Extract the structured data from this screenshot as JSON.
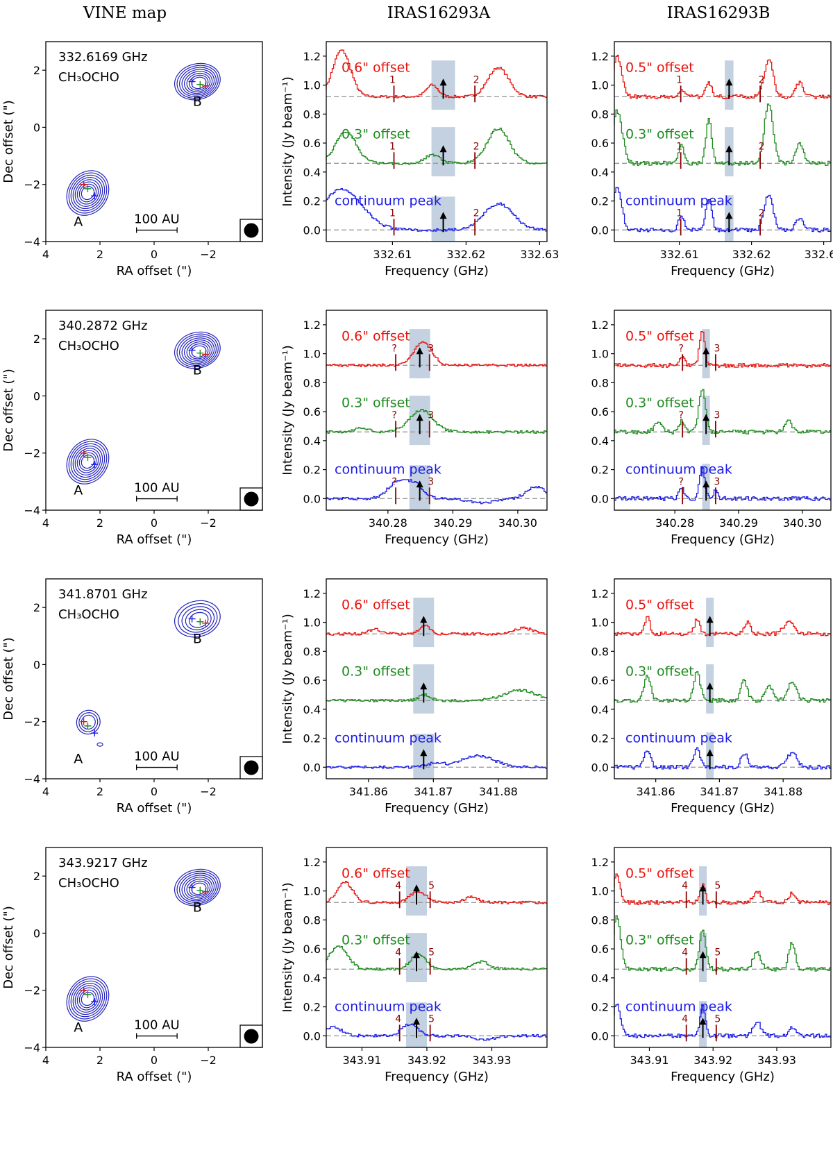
{
  "column_titles": [
    "VINE map",
    "IRAS16293A",
    "IRAS16293B"
  ],
  "map_axes": {
    "xlabel": "RA offset (\")",
    "ylabel": "Dec offset (\")",
    "x_ticks": [
      "4",
      "2",
      "0",
      "−2"
    ],
    "x_tick_values": [
      4,
      2,
      0,
      -2
    ],
    "y_ticks": [
      "−4",
      "−2",
      "0",
      "2"
    ],
    "y_tick_values": [
      -4,
      -2,
      0,
      2
    ],
    "xlim": [
      4,
      -4
    ],
    "ylim": [
      -4,
      3
    ],
    "scale_bar": "100 AU",
    "source_labels": [
      "A",
      "B"
    ]
  },
  "spectrum_axes": {
    "xlabel": "Frequency (GHz)",
    "ylabel": "Intensity (Jy beam⁻¹)",
    "y_ticks": [
      "0.0",
      "0.2",
      "0.4",
      "0.6",
      "0.8",
      "1.0",
      "1.2"
    ],
    "y_tick_values": [
      0.0,
      0.2,
      0.4,
      0.6,
      0.8,
      1.0,
      1.2
    ],
    "ylim": [
      -0.08,
      1.3
    ],
    "trace_labels_A": [
      "0.6\" offset",
      "0.3\" offset",
      "continuum peak"
    ],
    "trace_labels_B": [
      "0.5\" offset",
      "0.3\" offset",
      "continuum peak"
    ],
    "baselines": [
      0.92,
      0.46,
      0.0
    ],
    "colors": [
      "#e8120d",
      "#1e8a1e",
      "#1a1ae6"
    ]
  },
  "colors": {
    "contour": "#2222bb",
    "marker_line": "#8b0000",
    "highlight": "#b8c9dc",
    "baseline": "#999999"
  },
  "chart_data": [
    {
      "type": "line",
      "row": 1,
      "frequency_label": "332.6169 GHz",
      "molecule": "CH₃OCHO",
      "xlim": [
        332.601,
        332.631
      ],
      "x_ticks": [
        "332.61",
        "332.62",
        "332.63"
      ],
      "x_tick_values": [
        332.61,
        332.62,
        332.63
      ],
      "center": 332.6169,
      "markers": [
        {
          "label": "1",
          "freq": 332.6102
        },
        {
          "label": "2",
          "freq": 332.6212
        }
      ],
      "series": [
        {
          "name": "IRAS16293A 0.6\" offset",
          "features": [
            [
              332.6032,
              0.32,
              0.0012
            ],
            [
              332.6155,
              0.08,
              0.0008
            ],
            [
              332.6245,
              0.2,
              0.0014
            ]
          ]
        },
        {
          "name": "IRAS16293A 0.3\" offset",
          "features": [
            [
              332.6038,
              0.22,
              0.0014
            ],
            [
              332.6155,
              0.06,
              0.001
            ],
            [
              332.6245,
              0.24,
              0.0015
            ]
          ]
        },
        {
          "name": "IRAS16293A continuum peak",
          "features": [
            [
              332.6032,
              0.28,
              0.0028
            ],
            [
              332.6245,
              0.18,
              0.002
            ]
          ]
        },
        {
          "name": "IRAS16293B 0.5\" offset",
          "features": [
            [
              332.6015,
              0.28,
              0.0006
            ],
            [
              332.6104,
              0.05,
              0.0004
            ],
            [
              332.6142,
              0.1,
              0.0004
            ],
            [
              332.6225,
              0.26,
              0.0006
            ],
            [
              332.6268,
              0.1,
              0.0005
            ]
          ]
        },
        {
          "name": "IRAS16293B 0.3\" offset",
          "features": [
            [
              332.6015,
              0.36,
              0.0007
            ],
            [
              332.6104,
              0.12,
              0.0004
            ],
            [
              332.6142,
              0.3,
              0.0004
            ],
            [
              332.6225,
              0.42,
              0.0006
            ],
            [
              332.6268,
              0.14,
              0.0005
            ]
          ]
        },
        {
          "name": "IRAS16293B continuum peak",
          "features": [
            [
              332.6015,
              0.3,
              0.0006
            ],
            [
              332.6104,
              0.1,
              0.0004
            ],
            [
              332.6142,
              0.22,
              0.0004
            ],
            [
              332.6225,
              0.24,
              0.0006
            ],
            [
              332.6268,
              0.08,
              0.0005
            ]
          ]
        }
      ]
    },
    {
      "type": "line",
      "row": 2,
      "frequency_label": "340.2872 GHz",
      "molecule": "CH₃OCHO",
      "xlim": [
        340.2705,
        340.3045
      ],
      "x_ticks": [
        "340.28",
        "340.29",
        "340.30"
      ],
      "x_tick_values": [
        340.28,
        340.29,
        340.3
      ],
      "center": 340.2849,
      "markers": [
        {
          "label": "?",
          "freq": 340.2812
        },
        {
          "label": "3",
          "freq": 340.2864
        }
      ],
      "series": [
        {
          "name": "IRAS16293A 0.6\" offset",
          "features": [
            [
              340.2855,
              0.16,
              0.0014
            ]
          ]
        },
        {
          "name": "IRAS16293A 0.3\" offset",
          "features": [
            [
              340.2852,
              0.15,
              0.0018
            ],
            [
              340.276,
              0.03,
              0.001
            ]
          ]
        },
        {
          "name": "IRAS16293A continuum peak",
          "features": [
            [
              340.2818,
              0.12,
              0.0016
            ],
            [
              340.2845,
              0.08,
              0.0012
            ],
            [
              340.2945,
              -0.03,
              0.002
            ],
            [
              340.303,
              0.08,
              0.0015
            ]
          ]
        },
        {
          "name": "IRAS16293B 0.5\" offset",
          "features": [
            [
              340.2812,
              0.06,
              0.0004
            ],
            [
              340.2844,
              0.24,
              0.0004
            ]
          ]
        },
        {
          "name": "IRAS16293B 0.3\" offset",
          "features": [
            [
              340.2812,
              0.08,
              0.0004
            ],
            [
              340.2844,
              0.3,
              0.0005
            ],
            [
              340.2775,
              0.06,
              0.0006
            ],
            [
              340.298,
              0.08,
              0.0005
            ]
          ]
        },
        {
          "name": "IRAS16293B continuum peak",
          "features": [
            [
              340.2812,
              0.08,
              0.0004
            ],
            [
              340.2844,
              0.22,
              0.0004
            ],
            [
              340.2865,
              0.06,
              0.0003
            ]
          ]
        }
      ]
    },
    {
      "type": "line",
      "row": 3,
      "frequency_label": "341.8701 GHz",
      "molecule": "CH₃OCHO",
      "xlim": [
        341.8535,
        341.8875
      ],
      "x_ticks": [
        "341.86",
        "341.87",
        "341.88"
      ],
      "x_tick_values": [
        341.86,
        341.87,
        341.88
      ],
      "center": 341.8685,
      "markers": [],
      "series": [
        {
          "name": "IRAS16293A 0.6\" offset",
          "features": [
            [
              341.8688,
              0.06,
              0.0008
            ],
            [
              341.8612,
              0.03,
              0.001
            ],
            [
              341.884,
              0.04,
              0.0015
            ]
          ]
        },
        {
          "name": "IRAS16293A 0.3\" offset",
          "features": [
            [
              341.8688,
              0.04,
              0.0009
            ],
            [
              341.8835,
              0.07,
              0.0025
            ]
          ]
        },
        {
          "name": "IRAS16293A continuum peak",
          "features": [
            [
              341.877,
              0.08,
              0.0025
            ],
            [
              341.8705,
              0.03,
              0.0012
            ]
          ]
        },
        {
          "name": "IRAS16293B 0.5\" offset",
          "features": [
            [
              341.8588,
              0.12,
              0.0004
            ],
            [
              341.8666,
              0.1,
              0.0004
            ],
            [
              341.8745,
              0.08,
              0.0005
            ],
            [
              341.881,
              0.08,
              0.0008
            ]
          ]
        },
        {
          "name": "IRAS16293B 0.3\" offset",
          "features": [
            [
              341.8588,
              0.18,
              0.0005
            ],
            [
              341.8666,
              0.2,
              0.0005
            ],
            [
              341.874,
              0.14,
              0.0005
            ],
            [
              341.878,
              0.1,
              0.0006
            ],
            [
              341.8815,
              0.12,
              0.0007
            ]
          ]
        },
        {
          "name": "IRAS16293B continuum peak",
          "features": [
            [
              341.8588,
              0.12,
              0.0005
            ],
            [
              341.8666,
              0.13,
              0.0005
            ],
            [
              341.874,
              0.1,
              0.0005
            ],
            [
              341.8815,
              0.1,
              0.0008
            ]
          ]
        }
      ]
    },
    {
      "type": "line",
      "row": 4,
      "frequency_label": "343.9217 GHz",
      "molecule": "CH₃OCHO",
      "xlim": [
        343.9045,
        343.9385
      ],
      "x_ticks": [
        "343.91",
        "343.92",
        "343.93"
      ],
      "x_tick_values": [
        343.91,
        343.92,
        343.93
      ],
      "center": 343.9184,
      "markers": [
        {
          "label": "4",
          "freq": 343.9158
        },
        {
          "label": "5",
          "freq": 343.9205
        }
      ],
      "series": [
        {
          "name": "IRAS16293A 0.6\" offset",
          "features": [
            [
              343.9075,
              0.14,
              0.0012
            ],
            [
              343.9188,
              0.08,
              0.0012
            ],
            [
              343.927,
              0.04,
              0.001
            ]
          ]
        },
        {
          "name": "IRAS16293A 0.3\" offset",
          "features": [
            [
              343.9065,
              0.16,
              0.0014
            ],
            [
              343.9188,
              0.1,
              0.0012
            ],
            [
              343.9285,
              0.05,
              0.0012
            ]
          ]
        },
        {
          "name": "IRAS16293A continuum peak",
          "features": [
            [
              343.9055,
              0.06,
              0.0015
            ],
            [
              343.9175,
              0.08,
              0.0012
            ],
            [
              343.929,
              -0.03,
              0.0015
            ]
          ]
        },
        {
          "name": "IRAS16293B 0.5\" offset",
          "features": [
            [
              343.905,
              0.2,
              0.0005
            ],
            [
              343.9185,
              0.12,
              0.0004
            ],
            [
              343.927,
              0.08,
              0.0006
            ],
            [
              343.9325,
              0.06,
              0.0005
            ]
          ]
        },
        {
          "name": "IRAS16293B 0.3\" offset",
          "features": [
            [
              343.905,
              0.36,
              0.0006
            ],
            [
              343.9185,
              0.26,
              0.0005
            ],
            [
              343.927,
              0.12,
              0.0006
            ],
            [
              343.9325,
              0.18,
              0.0005
            ]
          ]
        },
        {
          "name": "IRAS16293B continuum peak",
          "features": [
            [
              343.905,
              0.22,
              0.0006
            ],
            [
              343.9185,
              0.2,
              0.0004
            ],
            [
              343.927,
              0.1,
              0.0006
            ],
            [
              343.9325,
              0.06,
              0.0005
            ]
          ]
        }
      ]
    }
  ]
}
